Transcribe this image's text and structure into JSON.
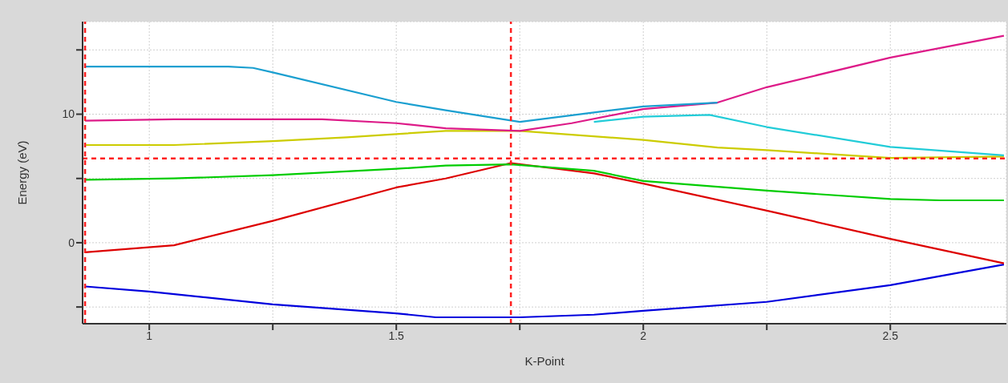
{
  "chart_data": {
    "type": "line",
    "xlabel": "K-Point",
    "ylabel": "Energy (eV)",
    "xlim": [
      0.865,
      2.735
    ],
    "ylim": [
      -6.3,
      17.2
    ],
    "xticks": [
      {
        "value": 1,
        "label": "1"
      },
      {
        "value": 1.25,
        "label": null
      },
      {
        "value": 1.5,
        "label": "1.5"
      },
      {
        "value": 1.75,
        "label": null
      },
      {
        "value": 2,
        "label": "2"
      },
      {
        "value": 2.25,
        "label": null
      },
      {
        "value": 2.5,
        "label": "2.5"
      }
    ],
    "yticks": [
      {
        "value": -5,
        "label": null
      },
      {
        "value": 0,
        "label": "0"
      },
      {
        "value": 5,
        "label": null
      },
      {
        "value": 10,
        "label": "10"
      },
      {
        "value": 15,
        "label": null
      }
    ],
    "grid": true,
    "marker": "none",
    "line_style": "solid",
    "series": [
      {
        "color": "#0000dd",
        "x": [
          0.87,
          1.0,
          1.25,
          1.5,
          1.58,
          1.75,
          1.9,
          2.0,
          2.25,
          2.5,
          2.73
        ],
        "values": [
          -3.4,
          -3.8,
          -4.8,
          -5.5,
          -5.8,
          -5.8,
          -5.6,
          -5.3,
          -4.6,
          -3.3,
          -1.7
        ]
      },
      {
        "color": "#dd0000",
        "x": [
          0.87,
          1.05,
          1.25,
          1.5,
          1.6,
          1.732,
          1.9,
          2.0,
          2.25,
          2.5,
          2.73
        ],
        "values": [
          -0.75,
          -0.2,
          1.7,
          4.3,
          5.0,
          6.2,
          5.4,
          4.6,
          2.5,
          0.3,
          -1.6
        ]
      },
      {
        "color": "#00cc00",
        "x": [
          0.87,
          1.05,
          1.25,
          1.376,
          1.5,
          1.6,
          1.732,
          1.9,
          2.0,
          2.25,
          2.5,
          2.6,
          2.73
        ],
        "values": [
          4.9,
          5.0,
          5.25,
          5.5,
          5.75,
          6.0,
          6.1,
          5.6,
          4.8,
          4.05,
          3.4,
          3.3,
          3.3
        ]
      },
      {
        "color": "#cccc00",
        "x": [
          0.87,
          1.05,
          1.25,
          1.4,
          1.5,
          1.6,
          1.75,
          2.0,
          2.15,
          2.25,
          2.5,
          2.73
        ],
        "values": [
          7.6,
          7.6,
          7.9,
          8.2,
          8.45,
          8.7,
          8.7,
          8.0,
          7.4,
          7.2,
          6.6,
          6.7
        ]
      },
      {
        "color": "#22ccd8",
        "x": [
          1.9,
          2.0,
          2.134,
          2.25,
          2.5,
          2.73
        ],
        "values": [
          9.4,
          9.8,
          9.95,
          9.0,
          7.45,
          6.8
        ]
      },
      {
        "color": "#dd1a88",
        "x": [
          0.87,
          1.05,
          1.25,
          1.35,
          1.5,
          1.6,
          1.75,
          1.855,
          2.0,
          2.15,
          2.25,
          2.5,
          2.73
        ],
        "values": [
          9.5,
          9.6,
          9.6,
          9.6,
          9.3,
          8.9,
          8.7,
          9.3,
          10.4,
          10.9,
          12.1,
          14.4,
          16.1
        ]
      },
      {
        "color": "#1a9fd0",
        "x": [
          0.87,
          1.16,
          1.21,
          1.25,
          1.5,
          1.6,
          1.75,
          1.935,
          2.0,
          2.15
        ],
        "values": [
          13.7,
          13.7,
          13.6,
          13.25,
          10.95,
          10.3,
          9.4,
          10.3,
          10.6,
          10.9
        ]
      }
    ],
    "ref_lines": [
      {
        "axis": "y",
        "value": 6.55,
        "color": "#ff2020",
        "line_style": "dashed"
      },
      {
        "axis": "x",
        "value": 1.732,
        "color": "#ff2020",
        "line_style": "dashed"
      },
      {
        "axis": "x",
        "value": 0.87,
        "color": "#ff2020",
        "line_style": "dashed"
      }
    ]
  }
}
